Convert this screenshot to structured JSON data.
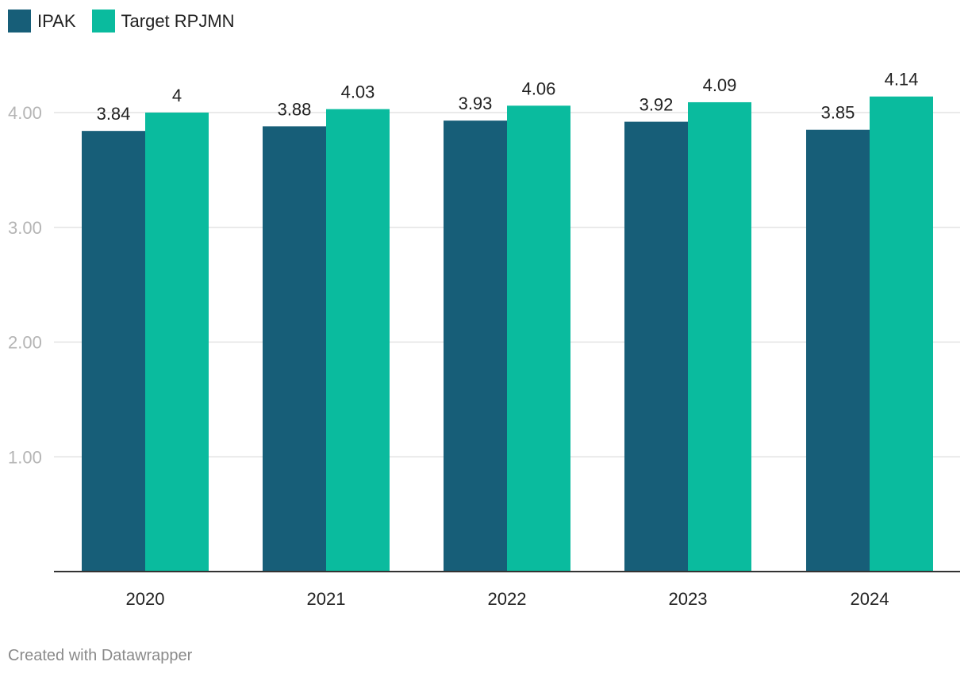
{
  "legend": {
    "items": [
      {
        "label": "IPAK",
        "color": "#175e78"
      },
      {
        "label": "Target RPJMN",
        "color": "#0abb9e"
      }
    ]
  },
  "chart_data": {
    "type": "bar",
    "title": "",
    "xlabel": "",
    "ylabel": "",
    "categories": [
      "2020",
      "2021",
      "2022",
      "2023",
      "2024"
    ],
    "series": [
      {
        "name": "IPAK",
        "color": "#175e78",
        "values": [
          3.84,
          3.88,
          3.93,
          3.92,
          3.85
        ],
        "labels": [
          "3.84",
          "3.88",
          "3.93",
          "3.92",
          "3.85"
        ]
      },
      {
        "name": "Target RPJMN",
        "color": "#0abb9e",
        "values": [
          4,
          4.03,
          4.06,
          4.09,
          4.14
        ],
        "labels": [
          "4",
          "4.03",
          "4.06",
          "4.09",
          "4.14"
        ]
      }
    ],
    "ylim": [
      0,
      4
    ],
    "yticks": [
      1,
      2,
      3,
      4
    ],
    "ytick_labels": [
      "1.00",
      "2.00",
      "3.00",
      "4.00"
    ],
    "grid": true,
    "legend_position": "top-left"
  },
  "footer": {
    "credit": "Created with Datawrapper"
  }
}
